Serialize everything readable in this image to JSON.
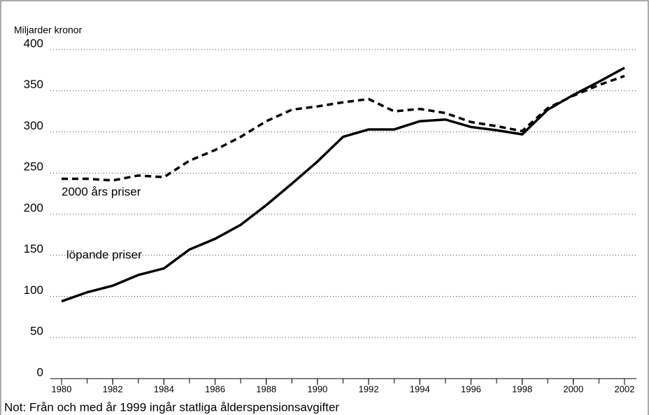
{
  "chart_data": {
    "type": "line",
    "y_axis_label": "Miljarder kronor",
    "note": "Not: Från och med år 1999 ingår statliga ålderspensionsavgifter",
    "x": [
      1980,
      1981,
      1982,
      1983,
      1984,
      1985,
      1986,
      1987,
      1988,
      1989,
      1990,
      1991,
      1992,
      1993,
      1994,
      1995,
      1996,
      1997,
      1998,
      1999,
      2000,
      2001,
      2002
    ],
    "series": [
      {
        "name": "löpande priser",
        "color": "#000000",
        "dash": false,
        "values": [
          94,
          105,
          113,
          126,
          134,
          157,
          170,
          187,
          211,
          237,
          264,
          294,
          303,
          303,
          313,
          315,
          306,
          302,
          297,
          327,
          345,
          361,
          378
        ]
      },
      {
        "name": "2000 års priser",
        "color": "#000000",
        "dash": true,
        "values": [
          243,
          243,
          241,
          247,
          245,
          265,
          278,
          294,
          313,
          327,
          331,
          336,
          340,
          325,
          328,
          323,
          312,
          307,
          301,
          329,
          344,
          357,
          368
        ]
      }
    ],
    "xlim": [
      1980,
      2002
    ],
    "xticks": [
      1980,
      1982,
      1984,
      1986,
      1988,
      1990,
      1992,
      1994,
      1996,
      1998,
      2000,
      2002
    ],
    "ylim": [
      0,
      400
    ],
    "yticks": [
      0,
      50,
      100,
      150,
      200,
      250,
      300,
      350,
      400
    ],
    "grid": true
  }
}
